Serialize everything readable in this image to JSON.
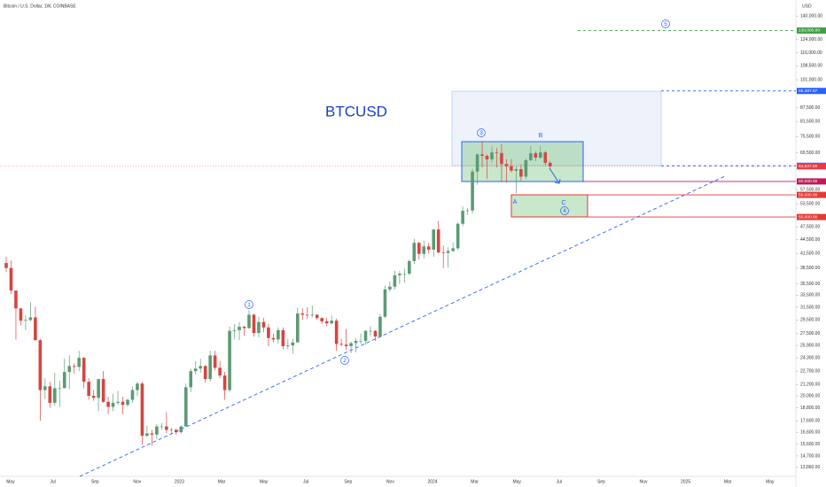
{
  "header": "Bitcoin / U.S. Dollar, 1W, COINBASE",
  "currency": "USD",
  "chart_data": {
    "type": "candlestick",
    "title": "BTCUSD",
    "log_scale": true,
    "grid": false,
    "up_color": "#5b9a74",
    "down_color": "#d64541",
    "ylim": [
      13240,
      152000
    ],
    "yticks": [
      {
        "value": 140000,
        "label": "140,000.00"
      },
      {
        "value": 124000,
        "label": "124,000.00"
      },
      {
        "value": 116000,
        "label": "116,000.00"
      },
      {
        "value": 108500,
        "label": "108,500.00"
      },
      {
        "value": 101000,
        "label": "101,000.00"
      },
      {
        "value": 87500,
        "label": "87,500.00"
      },
      {
        "value": 81500,
        "label": "81,500.00"
      },
      {
        "value": 75500,
        "label": "75,500.00"
      },
      {
        "value": 69500,
        "label": "69,500.00"
      },
      {
        "value": 57500,
        "label": "57,500.00"
      },
      {
        "value": 53500,
        "label": "53,500.00"
      },
      {
        "value": 47500,
        "label": "47,500.00"
      },
      {
        "value": 44500,
        "label": "44,500.00"
      },
      {
        "value": 41500,
        "label": "41,500.00"
      },
      {
        "value": 38500,
        "label": "38,500.00"
      },
      {
        "value": 35500,
        "label": "35,500.00"
      },
      {
        "value": 33500,
        "label": "33,500.00"
      },
      {
        "value": 31500,
        "label": "31,500.00"
      },
      {
        "value": 29500,
        "label": "29,500.00"
      },
      {
        "value": 27500,
        "label": "27,500.00"
      },
      {
        "value": 25900,
        "label": "25,900.00"
      },
      {
        "value": 24300,
        "label": "24,300.00"
      },
      {
        "value": 22700,
        "label": "22,700.00"
      },
      {
        "value": 21200,
        "label": "21,200.00"
      },
      {
        "value": 20000,
        "label": "20,000.00"
      },
      {
        "value": 18800,
        "label": "18,800.00"
      },
      {
        "value": 17600,
        "label": "17,600.00"
      },
      {
        "value": 16600,
        "label": "16,600.00"
      },
      {
        "value": 15600,
        "label": "15,600.00"
      },
      {
        "value": 14700,
        "label": "14,700.00"
      },
      {
        "value": 13860,
        "label": "13,860.00"
      }
    ],
    "x_labels": [
      "May",
      "Jul",
      "Sep",
      "Nov",
      "2023",
      "Mar",
      "May",
      "Jul",
      "Sep",
      "Nov",
      "2024",
      "Mar",
      "May",
      "Jul",
      "Sep",
      "Nov",
      "2025",
      "Mar",
      "May"
    ],
    "price_labels": [
      {
        "value": 130000,
        "label": "130,000.00",
        "color": "#43a047"
      },
      {
        "value": 95387.97,
        "label": "95,387.97",
        "color": "#2962ff"
      },
      {
        "value": 65000,
        "label": "65,000.00",
        "color": "#2962ff"
      },
      {
        "value": 64837.89,
        "label": "64,837.89",
        "color": "#f23645"
      },
      {
        "value": 60000,
        "label": "60,000.00",
        "color": "#c2185b"
      },
      {
        "value": 56000,
        "label": "56,000.00",
        "color": "#e53935"
      },
      {
        "value": 50000,
        "label": "50,000.00",
        "color": "#e53935"
      }
    ],
    "wave_labels": [
      "1",
      "2",
      "3",
      "4",
      "5"
    ],
    "corrective_labels": [
      "A",
      "B",
      "C"
    ],
    "open": [
      39500,
      38500,
      34300,
      31300,
      29400,
      29500,
      29900,
      26600,
      20600,
      21000,
      19300,
      20800,
      20800,
      22600,
      23300,
      23200,
      24300,
      21500,
      20000,
      19800,
      21800,
      19400,
      18900,
      19300,
      19400,
      19100,
      19600,
      20600,
      21300,
      16300,
      16500,
      16400,
      17100,
      17100,
      16800,
      16800,
      16600,
      17100,
      20900,
      22700,
      23000,
      23300,
      21800,
      24600,
      23100,
      22200,
      20600,
      27900,
      28000,
      28500,
      28300,
      30300,
      27600,
      29200,
      28400,
      26900,
      26700,
      28000,
      25800,
      25900,
      26300,
      30500,
      30300,
      30200,
      30300,
      29800,
      29300,
      29000,
      29400,
      26100,
      26000,
      25800,
      26200,
      26500,
      26500,
      27900,
      27900,
      27100,
      30000,
      34500,
      35000,
      37100,
      37400,
      37400,
      39900,
      43800,
      41400,
      43000,
      42300,
      46900,
      41700,
      41600,
      42000,
      42600,
      48300,
      51600,
      51700,
      63100,
      68900,
      68400,
      67200,
      69600,
      69400,
      65600,
      64900,
      63400,
      63900,
      61500,
      66900,
      69300,
      67800,
      69600,
      66000
    ],
    "high": [
      40800,
      40000,
      34300,
      31400,
      30200,
      32300,
      31600,
      26800,
      21900,
      21500,
      22500,
      21600,
      24200,
      24600,
      23600,
      25200,
      24400,
      21900,
      20600,
      21800,
      22700,
      19900,
      20200,
      20500,
      19900,
      19700,
      21000,
      21500,
      21500,
      17200,
      16800,
      17300,
      17400,
      18400,
      17000,
      16900,
      17200,
      21300,
      23000,
      23900,
      24200,
      23400,
      25200,
      25200,
      23900,
      22600,
      28500,
      28900,
      29200,
      28600,
      31000,
      30500,
      30000,
      29800,
      28900,
      27500,
      28400,
      28400,
      26800,
      26800,
      31400,
      31300,
      31500,
      31800,
      30400,
      29900,
      29800,
      30200,
      29700,
      26800,
      28200,
      26400,
      26900,
      27500,
      28000,
      28600,
      28000,
      30400,
      35200,
      35900,
      38000,
      37900,
      38400,
      40200,
      44700,
      44000,
      44300,
      43800,
      47000,
      49000,
      43200,
      42800,
      43900,
      48600,
      52800,
      52400,
      64000,
      69200,
      73800,
      68900,
      71700,
      71200,
      72800,
      67200,
      67300,
      64800,
      65500,
      67500,
      71900,
      70000,
      71900,
      70200,
      66500
    ],
    "low": [
      37700,
      33700,
      26700,
      28700,
      28000,
      29300,
      26600,
      17600,
      19700,
      18800,
      19000,
      18900,
      20800,
      20700,
      22400,
      22700,
      20800,
      19600,
      19500,
      18500,
      19300,
      18200,
      18500,
      19100,
      18200,
      18900,
      19300,
      20000,
      15600,
      16200,
      15500,
      16000,
      16800,
      16500,
      16400,
      16400,
      16500,
      17100,
      20400,
      22300,
      22500,
      21400,
      21500,
      22800,
      21900,
      19600,
      20400,
      26700,
      26600,
      27200,
      28200,
      27100,
      27000,
      27700,
      25800,
      26300,
      26100,
      25400,
      25400,
      24800,
      26300,
      29500,
      29700,
      29900,
      29500,
      28900,
      28600,
      28800,
      25200,
      25800,
      25300,
      24900,
      25000,
      26100,
      26000,
      27200,
      26500,
      26900,
      29800,
      34100,
      34500,
      35500,
      35700,
      37100,
      39300,
      40200,
      40500,
      41500,
      40800,
      41500,
      38500,
      38600,
      41900,
      42300,
      47700,
      50600,
      50900,
      59000,
      64500,
      60800,
      66000,
      64500,
      60000,
      59600,
      62800,
      56500,
      60200,
      60700,
      66600,
      66600,
      67400,
      65100,
      63500
    ],
    "close": [
      38500,
      34300,
      31300,
      29400,
      29500,
      29900,
      26600,
      20600,
      21000,
      19300,
      20800,
      20800,
      22600,
      23300,
      23200,
      24300,
      21500,
      20000,
      19800,
      21800,
      19400,
      18900,
      19300,
      19400,
      19100,
      19600,
      20600,
      21300,
      16300,
      16500,
      16400,
      17100,
      17100,
      16800,
      16800,
      16600,
      17100,
      20900,
      22700,
      23000,
      23300,
      21800,
      24600,
      23100,
      22200,
      20600,
      27900,
      28000,
      28500,
      28300,
      30300,
      27600,
      29200,
      28400,
      26900,
      26700,
      28000,
      25800,
      25900,
      26300,
      30500,
      30300,
      30200,
      30300,
      29800,
      29300,
      29000,
      29400,
      26100,
      26000,
      25800,
      26200,
      26500,
      26500,
      27900,
      27900,
      27100,
      30000,
      34500,
      35000,
      37100,
      37400,
      37400,
      39900,
      43800,
      41400,
      43000,
      42300,
      46900,
      41700,
      41600,
      42000,
      42600,
      48300,
      51600,
      51700,
      63100,
      68900,
      68400,
      67200,
      69600,
      69400,
      65600,
      64900,
      63400,
      63900,
      61500,
      66900,
      69300,
      67800,
      69600,
      66000,
      64837.89
    ]
  }
}
